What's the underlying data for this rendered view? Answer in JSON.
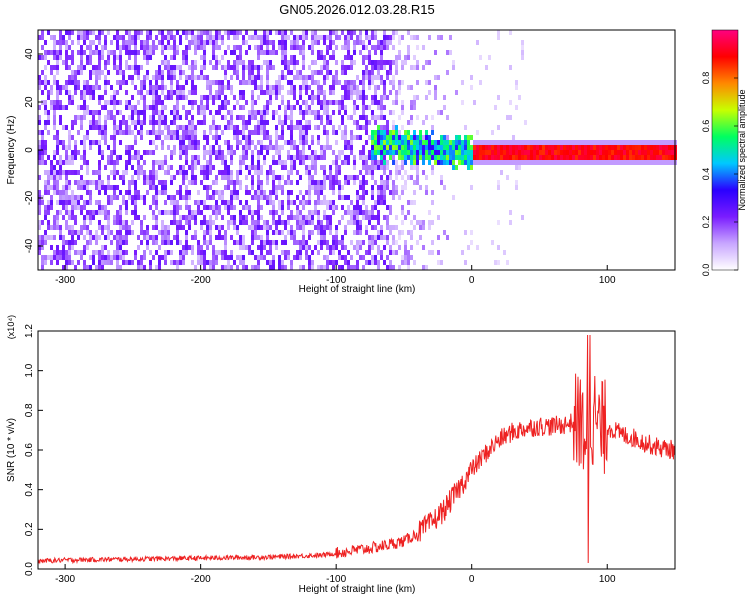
{
  "chart_data": [
    {
      "type": "heatmap",
      "title": "GN05.2026.012.03.28.R15",
      "xlabel": "Height of straight line (km)",
      "ylabel": "Frequency (Hz)",
      "xlim": [
        -320,
        150
      ],
      "ylim": [
        -50,
        50
      ],
      "xticks": [
        -300,
        -200,
        -100,
        0,
        100
      ],
      "yticks": [
        -40,
        -20,
        0,
        20,
        40
      ],
      "colorbar": {
        "label": "Normalized spectral amplitude",
        "range": [
          0,
          1
        ],
        "ticks": [
          "0.0",
          "0.2",
          "0.4",
          "0.6",
          "0.8"
        ],
        "colors": [
          "#ffffff",
          "#c8a6ff",
          "#7a1cff",
          "#2a00ff",
          "#00c8ff",
          "#00ff60",
          "#c8ff00",
          "#ff8800",
          "#ff0000",
          "#ff0080"
        ]
      },
      "description_regions": [
        {
          "x_range": [
            -320,
            -60
          ],
          "pattern": "dense broadband noise",
          "amplitude": 0.15
        },
        {
          "x_range": [
            -60,
            -10
          ],
          "pattern": "fading noise",
          "amplitude": 0.08
        },
        {
          "x_range": [
            -70,
            0
          ],
          "pattern": "narrowband signal near 0-5 Hz",
          "amplitude": 0.45
        },
        {
          "x_range": [
            0,
            150
          ],
          "pattern": "strong narrowband tone at ~0 Hz",
          "amplitude": 0.95
        }
      ]
    },
    {
      "type": "line",
      "xlabel": "Height of straight line (km)",
      "ylabel": "SNR (10 * v/v)",
      "ymultiplier": "(x10⁴)",
      "xlim": [
        -320,
        150
      ],
      "ylim": [
        0,
        1.2
      ],
      "xticks": [
        -300,
        -200,
        -100,
        0,
        100
      ],
      "yticks": [
        "0.0",
        "0.2",
        "0.4",
        "0.6",
        "0.8",
        "1.0",
        "1.2"
      ],
      "series": [
        {
          "color": "#ee2222",
          "x": [
            -320,
            -300,
            -250,
            -200,
            -150,
            -110,
            -90,
            -70,
            -50,
            -40,
            -30,
            -20,
            -10,
            0,
            10,
            20,
            30,
            40,
            50,
            60,
            70,
            80,
            85,
            90,
            95,
            100,
            110,
            120,
            130,
            140,
            150
          ],
          "y": [
            0.04,
            0.045,
            0.05,
            0.055,
            0.06,
            0.07,
            0.09,
            0.11,
            0.14,
            0.18,
            0.23,
            0.3,
            0.4,
            0.5,
            0.58,
            0.65,
            0.69,
            0.71,
            0.72,
            0.72,
            0.73,
            0.75,
            0.65,
            0.78,
            0.7,
            0.72,
            0.68,
            0.66,
            0.63,
            0.61,
            0.6
          ]
        }
      ]
    }
  ]
}
